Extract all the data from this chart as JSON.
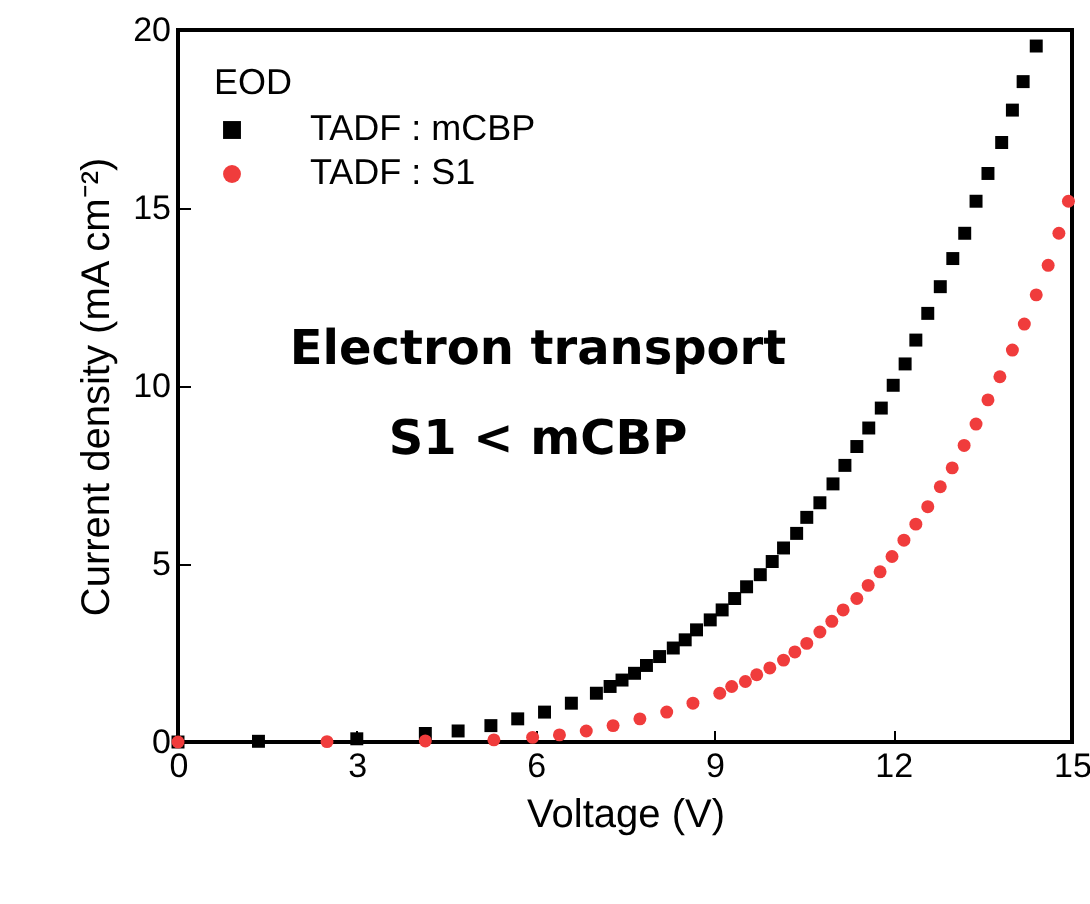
{
  "chart_data": {
    "type": "scatter",
    "xlabel": "Voltage (V)",
    "ylabel": "Current density (mA cm⁻²)",
    "legend_title": "EOD",
    "legend": "top left",
    "xlim": [
      0,
      15
    ],
    "xticks": [
      0,
      3,
      6,
      9,
      12,
      15
    ],
    "ylim": [
      0,
      20
    ],
    "yticks": [
      0,
      5,
      10,
      15,
      20
    ],
    "grid": false,
    "annotations": [
      "Electron transport",
      "S1 < mCBP"
    ],
    "series": [
      {
        "name": "TADF : mCBP",
        "color": "#000000",
        "marker": "square",
        "x": [
          0.0,
          1.35,
          3.0,
          4.15,
          4.7,
          5.25,
          5.7,
          6.15,
          6.6,
          7.02,
          7.25,
          7.45,
          7.66,
          7.86,
          8.08,
          8.31,
          8.51,
          8.7,
          8.93,
          9.13,
          9.34,
          9.54,
          9.77,
          9.97,
          10.16,
          10.38,
          10.55,
          10.77,
          10.99,
          11.19,
          11.39,
          11.59,
          11.8,
          12.0,
          12.2,
          12.38,
          12.58,
          12.79,
          13.0,
          13.2,
          13.39,
          13.59,
          13.82,
          14.0,
          14.18,
          14.4
        ],
        "values": [
          0.0,
          0.02,
          0.09,
          0.24,
          0.31,
          0.46,
          0.65,
          0.84,
          1.09,
          1.37,
          1.56,
          1.74,
          1.93,
          2.15,
          2.4,
          2.64,
          2.87,
          3.15,
          3.43,
          3.71,
          4.03,
          4.36,
          4.7,
          5.07,
          5.45,
          5.86,
          6.31,
          6.72,
          7.25,
          7.77,
          8.3,
          8.82,
          9.38,
          10.02,
          10.62,
          11.29,
          12.04,
          12.79,
          13.58,
          14.29,
          15.19,
          15.97,
          16.84,
          17.75,
          18.55,
          19.55
        ]
      },
      {
        "name": "TADF : S1",
        "color": "#f03c3c",
        "marker": "circle",
        "x": [
          0.0,
          2.5,
          4.15,
          5.3,
          5.95,
          6.4,
          6.85,
          7.3,
          7.75,
          8.2,
          8.64,
          9.09,
          9.29,
          9.52,
          9.71,
          9.93,
          10.16,
          10.35,
          10.55,
          10.77,
          10.97,
          11.16,
          11.39,
          11.58,
          11.78,
          11.98,
          12.18,
          12.38,
          12.58,
          12.79,
          12.99,
          13.19,
          13.39,
          13.59,
          13.79,
          14.0,
          14.2,
          14.4,
          14.6,
          14.78,
          14.94
        ],
        "values": [
          0.0,
          0.01,
          0.03,
          0.06,
          0.13,
          0.2,
          0.31,
          0.46,
          0.65,
          0.84,
          1.09,
          1.37,
          1.56,
          1.7,
          1.89,
          2.08,
          2.3,
          2.53,
          2.77,
          3.09,
          3.39,
          3.71,
          4.03,
          4.4,
          4.78,
          5.21,
          5.67,
          6.12,
          6.61,
          7.17,
          7.7,
          8.33,
          8.93,
          9.61,
          10.26,
          11.01,
          11.74,
          12.56,
          13.39,
          14.29,
          15.19
        ]
      }
    ]
  }
}
